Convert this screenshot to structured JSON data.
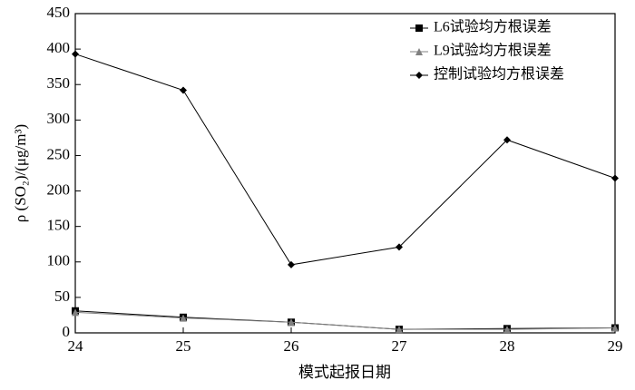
{
  "chart_data": {
    "type": "line",
    "xlabel": "模式起报日期",
    "ylabel": "ρ (SO₂)/(μg/m³)",
    "x": [
      24,
      25,
      26,
      27,
      28,
      29
    ],
    "xlim": [
      24,
      29
    ],
    "xticks": [
      24,
      25,
      26,
      27,
      28,
      29
    ],
    "ylim": [
      0,
      450
    ],
    "yticks": [
      0,
      50,
      100,
      150,
      200,
      250,
      300,
      350,
      400,
      450
    ],
    "legend": "upper-right",
    "series": [
      {
        "name": "L6试验均方根误差",
        "color": "#000000",
        "marker": "square",
        "values": [
          31,
          22,
          15,
          5,
          6,
          7
        ]
      },
      {
        "name": "L9试验均方根误差",
        "color": "#808080",
        "marker": "triangle",
        "values": [
          29,
          21,
          15,
          5,
          5,
          7
        ]
      },
      {
        "name": "控制试验均方根误差",
        "color": "#000000",
        "marker": "diamond",
        "values": [
          393,
          342,
          96,
          121,
          272,
          218
        ]
      }
    ]
  }
}
